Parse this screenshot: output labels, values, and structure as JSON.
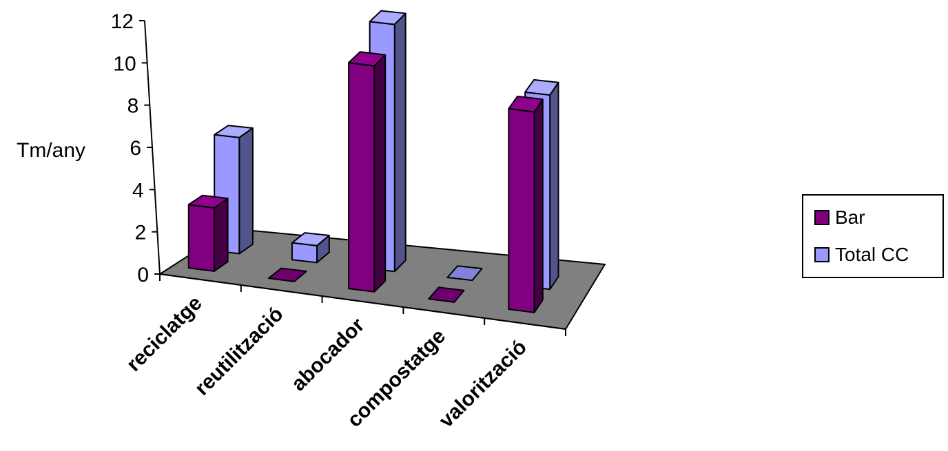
{
  "chart_data": {
    "type": "bar",
    "categories": [
      "reciclatge",
      "reutilització",
      "abocador",
      "compostatge",
      "valorització"
    ],
    "series": [
      {
        "name": "Bar",
        "values": [
          3.0,
          0,
          10.7,
          0,
          9.5
        ],
        "color": "#800080"
      },
      {
        "name": "Total CC",
        "values": [
          5.5,
          0.8,
          11.7,
          0,
          9.2
        ],
        "color": "#9999ff"
      }
    ],
    "ylabel": "Tm/any",
    "ylim": [
      0,
      12
    ],
    "yticks": [
      "0",
      "2",
      "4",
      "6",
      "8",
      "10",
      "12"
    ],
    "floor_color": "#808080",
    "legend_position": "right",
    "grid": false
  }
}
